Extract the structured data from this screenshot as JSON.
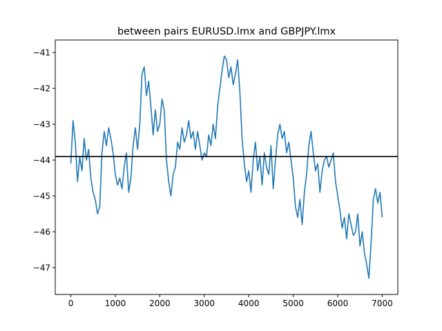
{
  "chart_data": {
    "type": "line",
    "title": "between pairs EURUSD.lmx and GBPJPY.lmx",
    "xlabel": "",
    "ylabel": "",
    "xlim": [
      -350,
      7350
    ],
    "ylim": [
      -47.75,
      -40.65
    ],
    "x_ticks": [
      0,
      1000,
      2000,
      3000,
      4000,
      5000,
      6000,
      7000
    ],
    "x_tick_labels": [
      "0",
      "1000",
      "2000",
      "3000",
      "4000",
      "5000",
      "6000",
      "7000"
    ],
    "y_ticks": [
      -41,
      -42,
      -43,
      -44,
      -45,
      -46,
      -47
    ],
    "y_tick_labels": [
      "−41",
      "−42",
      "−43",
      "−44",
      "−45",
      "−46",
      "−47"
    ],
    "grid": false,
    "series": [
      {
        "color": "#1f77b4",
        "x": [
          0,
          50,
          100,
          150,
          200,
          250,
          300,
          350,
          400,
          450,
          500,
          550,
          600,
          650,
          700,
          750,
          800,
          850,
          900,
          950,
          1000,
          1050,
          1100,
          1150,
          1200,
          1250,
          1300,
          1350,
          1400,
          1450,
          1500,
          1550,
          1600,
          1650,
          1700,
          1750,
          1800,
          1850,
          1900,
          1950,
          2000,
          2050,
          2100,
          2150,
          2200,
          2250,
          2300,
          2350,
          2400,
          2450,
          2500,
          2550,
          2600,
          2650,
          2700,
          2750,
          2800,
          2850,
          2900,
          2950,
          3000,
          3050,
          3100,
          3150,
          3200,
          3250,
          3300,
          3350,
          3400,
          3450,
          3500,
          3550,
          3600,
          3650,
          3700,
          3750,
          3800,
          3850,
          3900,
          3950,
          4000,
          4050,
          4100,
          4150,
          4200,
          4250,
          4300,
          4350,
          4400,
          4450,
          4500,
          4550,
          4600,
          4650,
          4700,
          4750,
          4800,
          4850,
          4900,
          4950,
          5000,
          5050,
          5100,
          5150,
          5200,
          5250,
          5300,
          5350,
          5400,
          5450,
          5500,
          5550,
          5600,
          5650,
          5700,
          5750,
          5800,
          5850,
          5900,
          5950,
          6000,
          6050,
          6100,
          6150,
          6200,
          6250,
          6300,
          6350,
          6400,
          6450,
          6500,
          6550,
          6600,
          6650,
          6700,
          6750,
          6800,
          6850,
          6900,
          6950,
          7000
        ],
        "values": [
          -44.1,
          -42.9,
          -43.5,
          -44.6,
          -43.9,
          -44.3,
          -43.4,
          -44.0,
          -43.7,
          -44.5,
          -44.9,
          -45.1,
          -45.5,
          -45.3,
          -43.8,
          -43.2,
          -43.6,
          -43.1,
          -43.4,
          -43.8,
          -44.4,
          -44.7,
          -44.5,
          -44.8,
          -44.2,
          -43.8,
          -44.9,
          -44.5,
          -43.6,
          -43.1,
          -43.7,
          -43.0,
          -41.6,
          -41.4,
          -42.2,
          -41.8,
          -42.5,
          -43.3,
          -42.6,
          -43.2,
          -43.0,
          -42.3,
          -42.6,
          -44.0,
          -44.6,
          -45.0,
          -44.4,
          -44.2,
          -43.5,
          -43.7,
          -43.1,
          -43.5,
          -43.3,
          -42.9,
          -43.4,
          -43.2,
          -43.7,
          -43.2,
          -43.6,
          -44.0,
          -43.8,
          -43.9,
          -43.3,
          -43.6,
          -43.0,
          -43.4,
          -42.5,
          -42.0,
          -41.5,
          -41.1,
          -41.2,
          -41.7,
          -41.4,
          -41.9,
          -41.6,
          -41.2,
          -42.1,
          -43.4,
          -44.1,
          -44.6,
          -44.3,
          -44.9,
          -44.0,
          -43.5,
          -44.3,
          -43.9,
          -44.7,
          -43.8,
          -44.2,
          -44.4,
          -43.6,
          -44.8,
          -44.0,
          -43.3,
          -43.0,
          -43.4,
          -43.2,
          -43.8,
          -43.5,
          -44.0,
          -44.5,
          -45.3,
          -45.6,
          -45.1,
          -45.8,
          -44.9,
          -44.4,
          -43.6,
          -43.2,
          -43.8,
          -44.3,
          -44.1,
          -44.9,
          -44.3,
          -44.0,
          -43.9,
          -44.2,
          -44.0,
          -43.8,
          -44.6,
          -45.0,
          -45.4,
          -45.9,
          -45.6,
          -46.2,
          -45.5,
          -45.8,
          -46.1,
          -46.0,
          -45.5,
          -46.4,
          -46.0,
          -46.6,
          -46.9,
          -47.3,
          -46.3,
          -45.1,
          -44.8,
          -45.2,
          -44.9,
          -45.6
        ]
      }
    ],
    "hlines": [
      {
        "y": -43.9,
        "color": "#000000"
      }
    ]
  }
}
